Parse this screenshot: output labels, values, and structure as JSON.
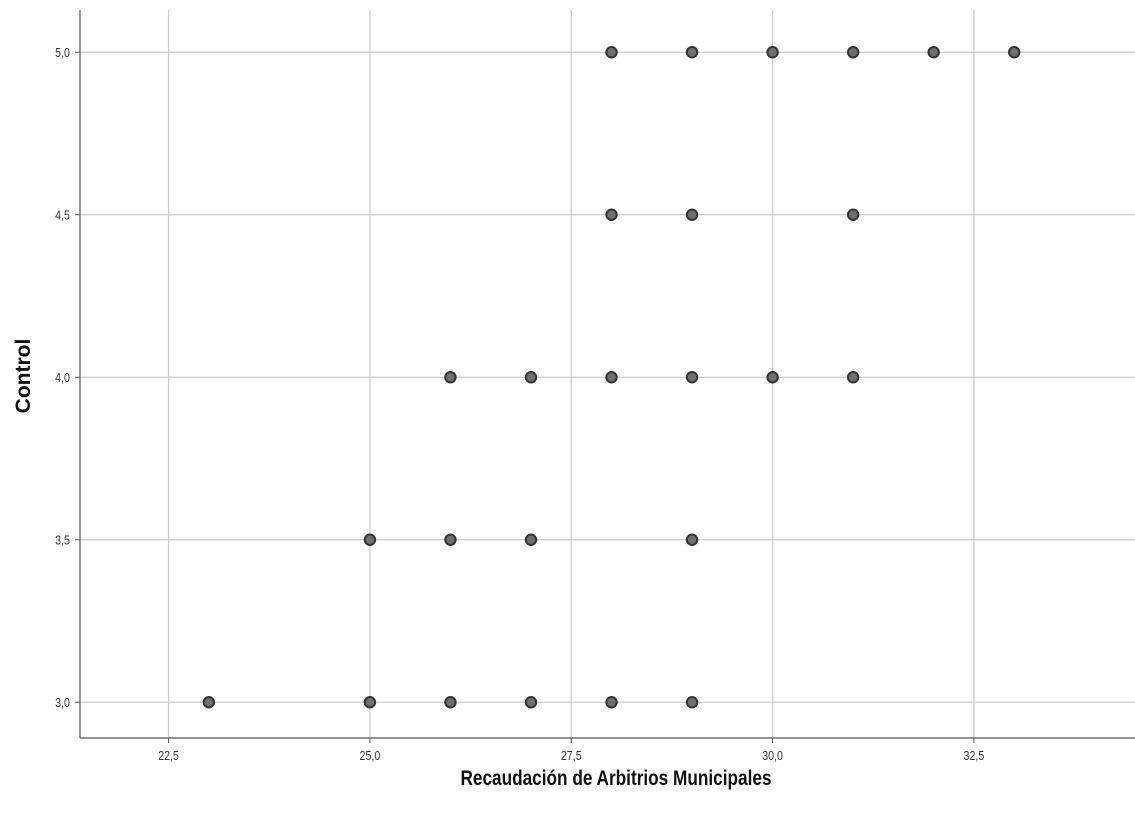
{
  "chart_data": {
    "type": "scatter",
    "title": "",
    "xlabel": "Recaudación de Arbitrios Municipales",
    "ylabel": "Control",
    "xlim": [
      21.4,
      34.5
    ],
    "ylim": [
      2.89,
      5.13
    ],
    "x_ticks": [
      22.5,
      25.0,
      27.5,
      30.0,
      32.5
    ],
    "x_tick_labels": [
      "22,5",
      "25,0",
      "27,5",
      "30,0",
      "32,5"
    ],
    "y_ticks": [
      3.0,
      3.5,
      4.0,
      4.5,
      5.0
    ],
    "y_tick_labels": [
      "3,0",
      "3,5",
      "4,0",
      "4,5",
      "5,0"
    ],
    "grid": true,
    "legend": "none",
    "series": [
      {
        "points": [
          {
            "x": 28,
            "y": 5.0
          },
          {
            "x": 29,
            "y": 5.0
          },
          {
            "x": 30,
            "y": 5.0
          },
          {
            "x": 31,
            "y": 5.0
          },
          {
            "x": 32,
            "y": 5.0
          },
          {
            "x": 33,
            "y": 5.0
          },
          {
            "x": 28,
            "y": 4.5
          },
          {
            "x": 29,
            "y": 4.5
          },
          {
            "x": 31,
            "y": 4.5
          },
          {
            "x": 26,
            "y": 4.0
          },
          {
            "x": 27,
            "y": 4.0
          },
          {
            "x": 28,
            "y": 4.0
          },
          {
            "x": 29,
            "y": 4.0
          },
          {
            "x": 30,
            "y": 4.0
          },
          {
            "x": 31,
            "y": 4.0
          },
          {
            "x": 25,
            "y": 3.5
          },
          {
            "x": 26,
            "y": 3.5
          },
          {
            "x": 27,
            "y": 3.5
          },
          {
            "x": 29,
            "y": 3.5
          },
          {
            "x": 23,
            "y": 3.0
          },
          {
            "x": 25,
            "y": 3.0
          },
          {
            "x": 26,
            "y": 3.0
          },
          {
            "x": 27,
            "y": 3.0
          },
          {
            "x": 28,
            "y": 3.0
          },
          {
            "x": 29,
            "y": 3.0
          }
        ]
      }
    ],
    "colors": {
      "marker_fill": "#6f6f6f",
      "marker_stroke": "#333333",
      "grid": "#cccccc",
      "axis": "#555555"
    }
  }
}
